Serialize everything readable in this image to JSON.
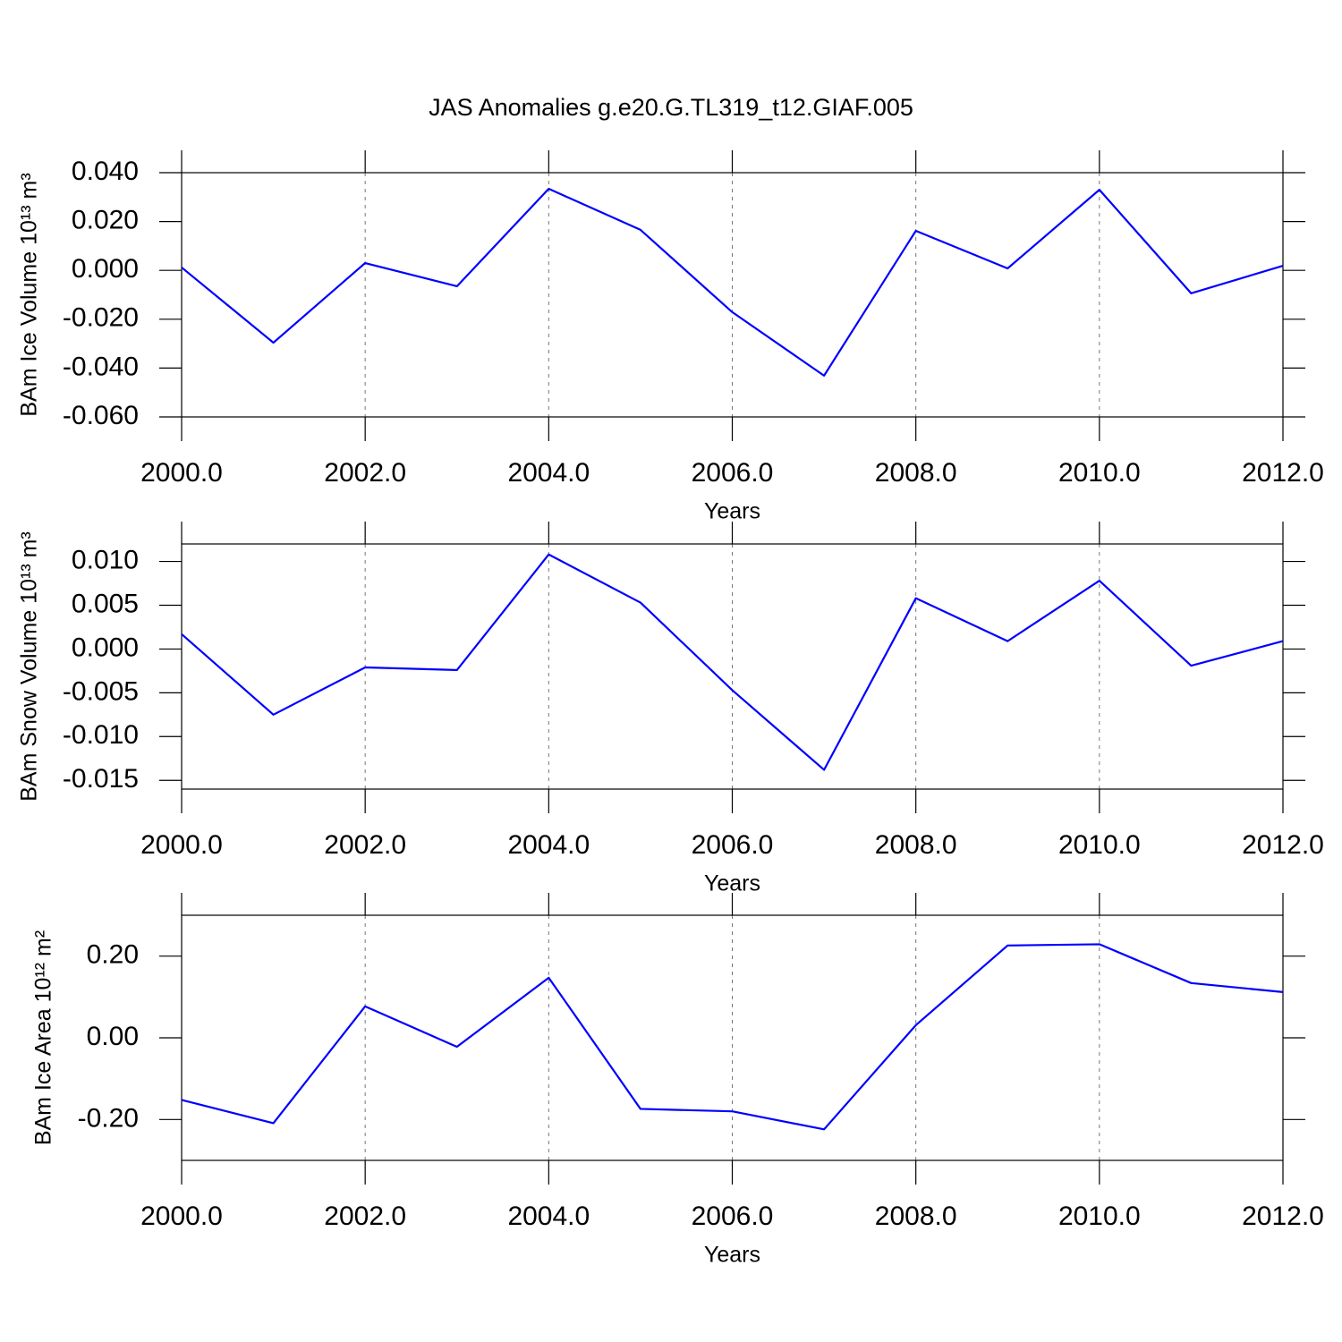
{
  "chart_data": [
    {
      "type": "line",
      "title": "JAS Anomalies g.e20.G.TL319_t12.GIAF.005",
      "xlabel": "Years",
      "ylabel": "BAm Ice Volume 10¹³ m³",
      "x": [
        2000,
        2001,
        2002,
        2003,
        2004,
        2005,
        2006,
        2007,
        2008,
        2009,
        2010,
        2011,
        2012
      ],
      "series": [
        {
          "color": "#0000ff",
          "values": [
            0.0012,
            -0.0296,
            0.003,
            -0.0065,
            0.0334,
            0.0166,
            -0.0171,
            -0.0431,
            0.0162,
            0.0008,
            0.033,
            -0.0094,
            0.0019
          ]
        }
      ],
      "xlim": [
        2000,
        2012
      ],
      "xticks": [
        {
          "value": 2000,
          "label": "2000.0"
        },
        {
          "value": 2002,
          "label": "2002.0"
        },
        {
          "value": 2004,
          "label": "2004.0"
        },
        {
          "value": 2006,
          "label": "2006.0"
        },
        {
          "value": 2008,
          "label": "2008.0"
        },
        {
          "value": 2010,
          "label": "2010.0"
        },
        {
          "value": 2012,
          "label": "2012.0"
        }
      ],
      "ylim": [
        -0.06,
        0.04
      ],
      "yticks": [
        {
          "value": 0.04,
          "label": "0.040"
        },
        {
          "value": 0.02,
          "label": "0.020"
        },
        {
          "value": 0,
          "label": "0.000"
        },
        {
          "value": -0.02,
          "label": "-0.020"
        },
        {
          "value": -0.04,
          "label": "-0.040"
        },
        {
          "value": -0.06,
          "label": "-0.060"
        }
      ],
      "grid": "x-dashed"
    },
    {
      "type": "line",
      "xlabel": "Years",
      "ylabel": "BAm Snow Volume 10¹³ m³",
      "x": [
        2000,
        2001,
        2002,
        2003,
        2004,
        2005,
        2006,
        2007,
        2008,
        2009,
        2010,
        2011,
        2012
      ],
      "series": [
        {
          "color": "#0000ff",
          "values": [
            0.0017,
            -0.0075,
            -0.0021,
            -0.0024,
            0.0108,
            0.0053,
            -0.0047,
            -0.0138,
            0.0058,
            0.0009,
            0.0078,
            -0.0019,
            0.0009
          ]
        }
      ],
      "xlim": [
        2000,
        2012
      ],
      "xticks": [
        {
          "value": 2000,
          "label": "2000.0"
        },
        {
          "value": 2002,
          "label": "2002.0"
        },
        {
          "value": 2004,
          "label": "2004.0"
        },
        {
          "value": 2006,
          "label": "2006.0"
        },
        {
          "value": 2008,
          "label": "2008.0"
        },
        {
          "value": 2010,
          "label": "2010.0"
        },
        {
          "value": 2012,
          "label": "2012.0"
        }
      ],
      "ylim": [
        -0.016,
        0.012
      ],
      "yticks": [
        {
          "value": 0.01,
          "label": "0.010"
        },
        {
          "value": 0.005,
          "label": "0.005"
        },
        {
          "value": 0,
          "label": "0.000"
        },
        {
          "value": -0.005,
          "label": "-0.005"
        },
        {
          "value": -0.01,
          "label": "-0.010"
        },
        {
          "value": -0.015,
          "label": "-0.015"
        }
      ],
      "grid": "x-dashed"
    },
    {
      "type": "line",
      "xlabel": "Years",
      "ylabel": "BAm Ice Area 10¹² m²",
      "x": [
        2000,
        2001,
        2002,
        2003,
        2004,
        2005,
        2006,
        2007,
        2008,
        2009,
        2010,
        2011,
        2012
      ],
      "series": [
        {
          "color": "#0000ff",
          "values": [
            -0.152,
            -0.209,
            0.077,
            -0.022,
            0.147,
            -0.174,
            -0.18,
            -0.224,
            0.031,
            0.226,
            0.229,
            0.134,
            0.112
          ]
        }
      ],
      "xlim": [
        2000,
        2012
      ],
      "xticks": [
        {
          "value": 2000,
          "label": "2000.0"
        },
        {
          "value": 2002,
          "label": "2002.0"
        },
        {
          "value": 2004,
          "label": "2004.0"
        },
        {
          "value": 2006,
          "label": "2006.0"
        },
        {
          "value": 2008,
          "label": "2008.0"
        },
        {
          "value": 2010,
          "label": "2010.0"
        },
        {
          "value": 2012,
          "label": "2012.0"
        }
      ],
      "ylim": [
        -0.3,
        0.3
      ],
      "yticks": [
        {
          "value": 0.2,
          "label": "0.20"
        },
        {
          "value": 0,
          "label": "0.00"
        },
        {
          "value": -0.2,
          "label": "-0.20"
        }
      ],
      "grid": "x-dashed"
    }
  ]
}
